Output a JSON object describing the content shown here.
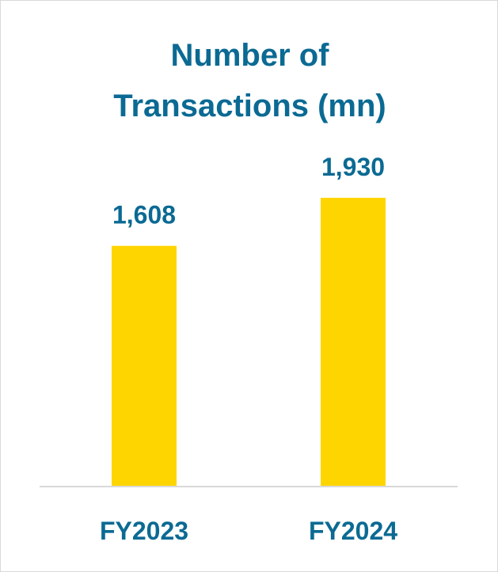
{
  "chart_data": {
    "type": "bar",
    "title_lines": [
      "Number of",
      "Transactions (mn)"
    ],
    "categories": [
      "FY2023",
      "FY2024"
    ],
    "values": [
      1608,
      1930
    ],
    "value_labels": [
      "1,608",
      "1,930"
    ],
    "xlabel": "",
    "ylabel": "",
    "grid": false,
    "legend": "none"
  },
  "colors": {
    "bar": "#FFD500",
    "text": "#0B6A93",
    "axis": "#D9D9D9",
    "border": "#D9D9D9"
  }
}
